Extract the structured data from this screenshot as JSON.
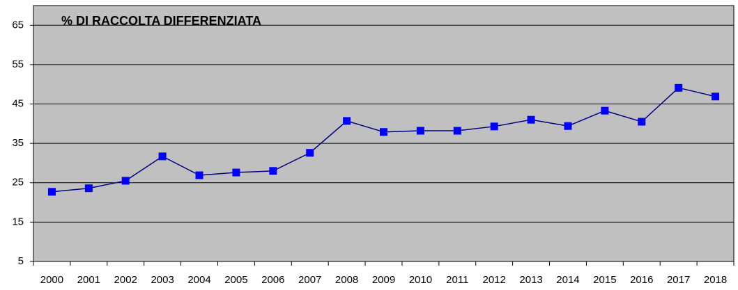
{
  "chart_data": {
    "type": "line",
    "title": "% DI RACCOLTA DIFFERENZIATA",
    "categories": [
      "2000",
      "2001",
      "2002",
      "2003",
      "2004",
      "2005",
      "2006",
      "2007",
      "2008",
      "2009",
      "2010",
      "2011",
      "2012",
      "2013",
      "2014",
      "2015",
      "2016",
      "2017",
      "2018"
    ],
    "values": [
      22.7,
      23.6,
      25.5,
      31.7,
      26.9,
      27.6,
      28.0,
      32.6,
      40.7,
      37.9,
      38.2,
      38.2,
      39.3,
      41.0,
      39.4,
      43.3,
      40.5,
      49.1,
      46.9
    ],
    "color": "#0000ff",
    "ylim": [
      5,
      70
    ],
    "yticks": [
      5,
      15,
      25,
      35,
      45,
      55,
      65
    ],
    "grid": true
  }
}
